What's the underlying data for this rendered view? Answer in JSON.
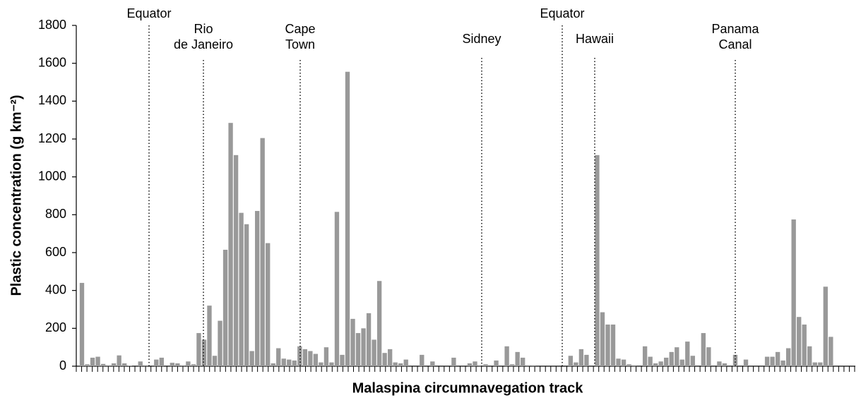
{
  "chart_data": {
    "type": "bar",
    "x_label": "Malaspina circumnavegation track",
    "y_label": "Plastic concentration (g km⁻²)",
    "color": "#999999",
    "ylim": [
      0,
      1800
    ],
    "yticks": [
      0,
      200,
      400,
      600,
      800,
      1000,
      1200,
      1400,
      1600,
      1800
    ],
    "values": [
      440,
      10,
      45,
      50,
      12,
      5,
      15,
      57,
      15,
      3,
      0,
      25,
      5,
      0,
      35,
      45,
      0,
      18,
      15,
      5,
      25,
      10,
      175,
      140,
      320,
      55,
      240,
      615,
      1285,
      1115,
      810,
      750,
      80,
      820,
      1205,
      650,
      15,
      95,
      40,
      35,
      30,
      105,
      90,
      80,
      65,
      20,
      100,
      20,
      815,
      60,
      1555,
      250,
      175,
      200,
      280,
      140,
      450,
      70,
      90,
      20,
      15,
      35,
      0,
      0,
      60,
      0,
      25,
      0,
      0,
      0,
      45,
      0,
      0,
      15,
      25,
      5,
      10,
      0,
      30,
      0,
      105,
      10,
      75,
      45,
      5,
      5,
      0,
      0,
      0,
      0,
      0,
      0,
      55,
      20,
      90,
      60,
      0,
      1115,
      285,
      220,
      220,
      40,
      35,
      10,
      5,
      0,
      105,
      50,
      15,
      25,
      45,
      75,
      100,
      35,
      130,
      55,
      0,
      175,
      100,
      0,
      25,
      15,
      0,
      60,
      0,
      35,
      0,
      0,
      0,
      50,
      50,
      75,
      30,
      95,
      775,
      260,
      220,
      105,
      20,
      20,
      420,
      155,
      0,
      0,
      0,
      0
    ],
    "annotations": [
      {
        "text": [
          "Equator"
        ]
      },
      {
        "text": [
          "Rio",
          "de Janeiro"
        ]
      },
      {
        "text": [
          "Cape",
          "Town"
        ]
      },
      {
        "text": [
          "Sidney"
        ]
      },
      {
        "text": [
          "Equator"
        ]
      },
      {
        "text": [
          "Hawaii"
        ]
      },
      {
        "text": [
          "Panama",
          "Canal"
        ]
      }
    ]
  }
}
